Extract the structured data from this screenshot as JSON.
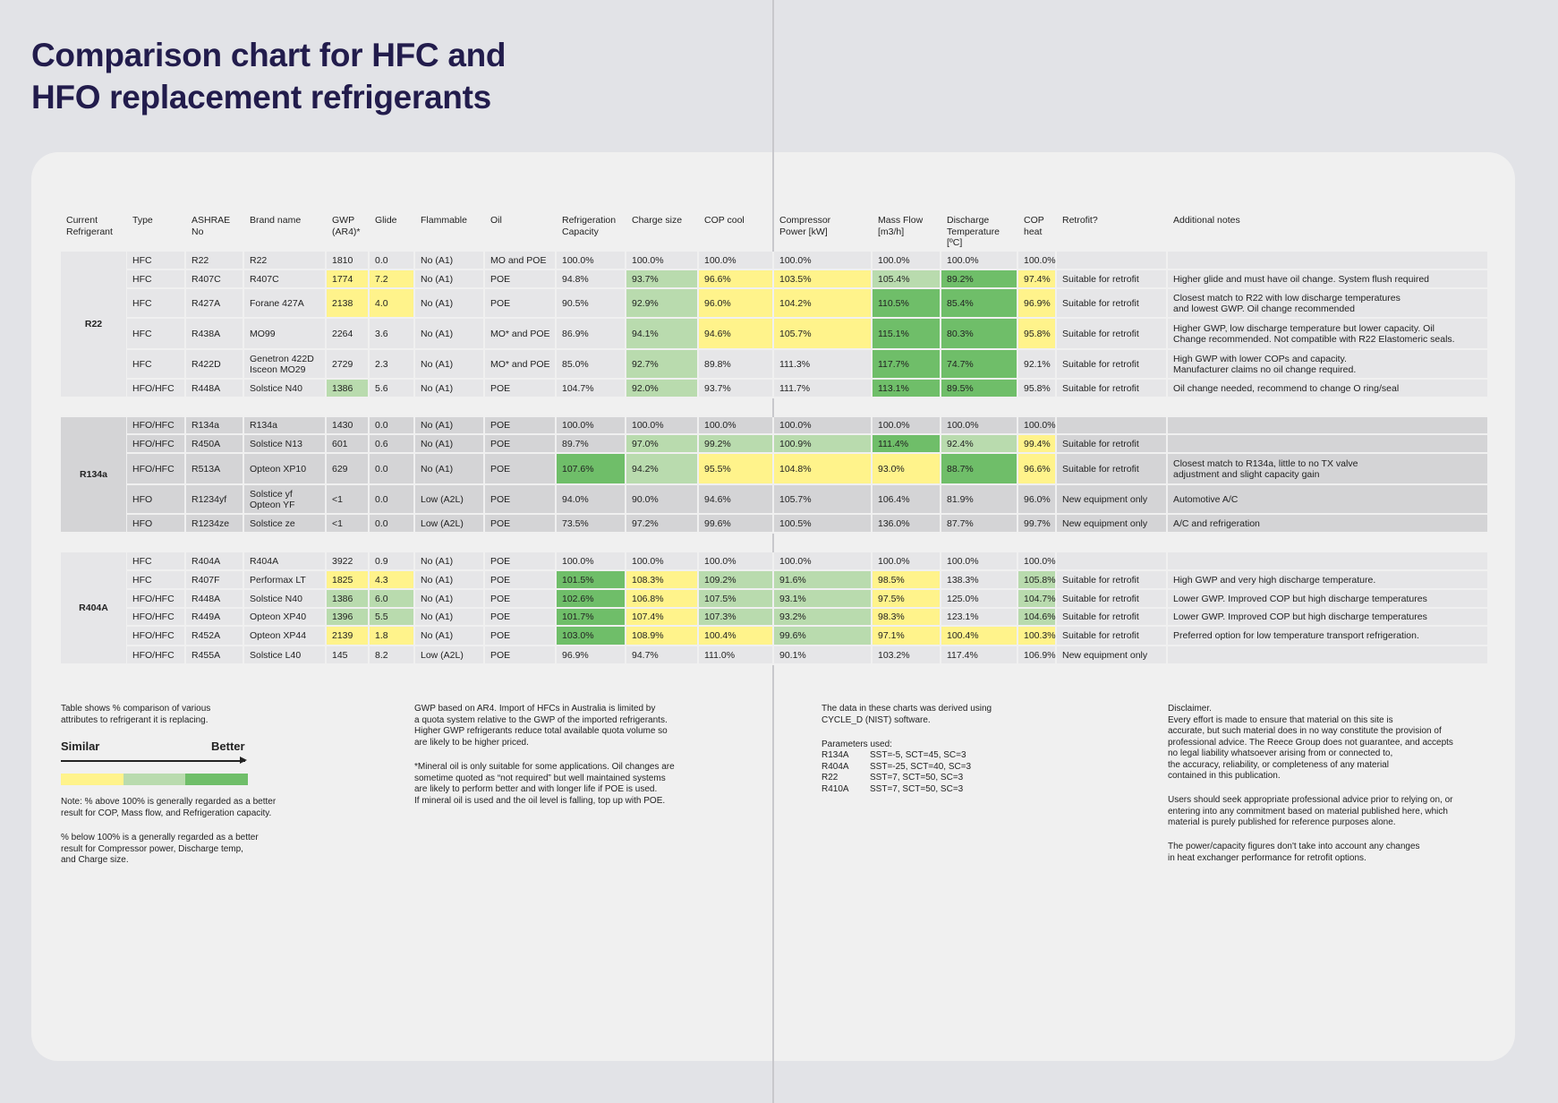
{
  "title": "Comparison chart for HFC and\nHFO replacement refrigerants",
  "colors": {
    "Y": "#fff38b",
    "L": "#b9dbae",
    "G": "#6fbe69",
    "bg_light": "#e6e6e8",
    "bg_dark": "#d4d4d6"
  },
  "headers": [
    "Current\nRefrigerant",
    "Type",
    "ASHRAE\nNo",
    "Brand name",
    "GWP\n(AR4)*",
    "Glide",
    "Flammable",
    "Oil",
    "Refrigeration\nCapacity",
    "Charge size",
    "COP cool",
    "Compressor\nPower [kW]",
    "Mass Flow\n[m3/h]",
    "Discharge\nTemperature\n[ºC]",
    "COP\nheat",
    "Retrofit?",
    "Additional notes"
  ],
  "groups": [
    {
      "label": "R22",
      "shade": "bg_light",
      "rows": [
        {
          "cells": [
            "HFC",
            "R22",
            "R22",
            "1810",
            "0.0",
            "No (A1)",
            "MO and POE",
            "100.0%",
            "100.0%",
            "100.0%",
            "100.0%",
            "100.0%",
            "100.0%",
            "100.0%",
            "",
            ""
          ],
          "hl": "................"
        },
        {
          "cells": [
            "HFC",
            "R407C",
            "R407C",
            "1774",
            "7.2",
            "No (A1)",
            "POE",
            "94.8%",
            "93.7%",
            "96.6%",
            "103.5%",
            "105.4%",
            "89.2%",
            "97.4%",
            "Suitable for retrofit",
            "Higher glide and must have oil change. System flush required"
          ],
          "hl": "...YY...LYYLGY.."
        },
        {
          "cells": [
            "HFC",
            "R427A",
            "Forane 427A",
            "2138",
            "4.0",
            "No (A1)",
            "POE",
            "90.5%",
            "92.9%",
            "96.0%",
            "104.2%",
            "110.5%",
            "85.4%",
            "96.9%",
            "Suitable for retrofit",
            "Closest match to R22 with low discharge temperatures\nand lowest GWP. Oil change recommended"
          ],
          "hl": "...YY...LYYGGY.."
        },
        {
          "cells": [
            "HFC",
            "R438A",
            "MO99",
            "2264",
            "3.6",
            "No (A1)",
            "MO* and POE",
            "86.9%",
            "94.1%",
            "94.6%",
            "105.7%",
            "115.1%",
            "80.3%",
            "95.8%",
            "Suitable for retrofit",
            "Higher GWP, low discharge temperature but lower capacity. Oil\nChange recommended. Not compatible with R22 Elastomeric seals."
          ],
          "hl": "........LYYGGY.."
        },
        {
          "cells": [
            "HFC",
            "R422D",
            "Genetron 422D\nIsceon MO29",
            "2729",
            "2.3",
            "No (A1)",
            "MO* and POE",
            "85.0%",
            "92.7%",
            "89.8%",
            "111.3%",
            "117.7%",
            "74.7%",
            "92.1%",
            "Suitable for retrofit",
            "High GWP with lower COPs and capacity.\nManufacturer claims no oil change required."
          ],
          "hl": "........L..GG..."
        },
        {
          "cells": [
            "HFO/HFC",
            "R448A",
            "Solstice N40",
            "1386",
            "5.6",
            "No (A1)",
            "POE",
            "104.7%",
            "92.0%",
            "93.7%",
            "111.7%",
            "113.1%",
            "89.5%",
            "95.8%",
            "Suitable for retrofit",
            "Oil change needed, recommend to change O ring/seal"
          ],
          "hl": "...L....L..GG..."
        }
      ]
    },
    {
      "label": "R134a",
      "shade": "bg_dark",
      "rows": [
        {
          "cells": [
            "HFO/HFC",
            "R134a",
            "R134a",
            "1430",
            "0.0",
            "No (A1)",
            "POE",
            "100.0%",
            "100.0%",
            "100.0%",
            "100.0%",
            "100.0%",
            "100.0%",
            "100.0%",
            "",
            ""
          ],
          "hl": "................"
        },
        {
          "cells": [
            "HFO/HFC",
            "R450A",
            "Solstice N13",
            "601",
            "0.6",
            "No (A1)",
            "POE",
            "89.7%",
            "97.0%",
            "99.2%",
            "100.9%",
            "111.4%",
            "92.4%",
            "99.4%",
            "Suitable for retrofit",
            ""
          ],
          "hl": "........LLLGLY.."
        },
        {
          "cells": [
            "HFO/HFC",
            "R513A",
            "Opteon XP10",
            "629",
            "0.0",
            "No (A1)",
            "POE",
            "107.6%",
            "94.2%",
            "95.5%",
            "104.8%",
            "93.0%",
            "88.7%",
            "96.6%",
            "Suitable for retrofit",
            "Closest match to R134a, little to no TX valve\nadjustment and slight capacity gain"
          ],
          "hl": ".......GLYYYGY.."
        },
        {
          "cells": [
            "HFO",
            "R1234yf",
            "Solstice yf\nOpteon YF",
            "<1",
            "0.0",
            "Low (A2L)",
            "POE",
            "94.0%",
            "90.0%",
            "94.6%",
            "105.7%",
            "106.4%",
            "81.9%",
            "96.0%",
            "New equipment only",
            "Automotive A/C"
          ],
          "hl": "................"
        },
        {
          "cells": [
            "HFO",
            "R1234ze",
            "Solstice ze",
            "<1",
            "0.0",
            "Low (A2L)",
            "POE",
            "73.5%",
            "97.2%",
            "99.6%",
            "100.5%",
            "136.0%",
            "87.7%",
            "99.7%",
            "New equipment only",
            "A/C and refrigeration"
          ],
          "hl": "................"
        }
      ]
    },
    {
      "label": "R404A",
      "shade": "bg_light",
      "rows": [
        {
          "cells": [
            "HFC",
            "R404A",
            "R404A",
            "3922",
            "0.9",
            "No (A1)",
            "POE",
            "100.0%",
            "100.0%",
            "100.0%",
            "100.0%",
            "100.0%",
            "100.0%",
            "100.0%",
            "",
            ""
          ],
          "hl": "................"
        },
        {
          "cells": [
            "HFC",
            "R407F",
            "Performax LT",
            "1825",
            "4.3",
            "No (A1)",
            "POE",
            "101.5%",
            "108.3%",
            "109.2%",
            "91.6%",
            "98.5%",
            "138.3%",
            "105.8%",
            "Suitable for retrofit",
            "High GWP and very high discharge temperature."
          ],
          "hl": "...YY..GYLLY.L.."
        },
        {
          "cells": [
            "HFO/HFC",
            "R448A",
            "Solstice N40",
            "1386",
            "6.0",
            "No (A1)",
            "POE",
            "102.6%",
            "106.8%",
            "107.5%",
            "93.1%",
            "97.5%",
            "125.0%",
            "104.7%",
            "Suitable for retrofit",
            "Lower GWP. Improved COP but high discharge temperatures"
          ],
          "hl": "...LL..GYLLY.L.."
        },
        {
          "cells": [
            "HFO/HFC",
            "R449A",
            "Opteon XP40",
            "1396",
            "5.5",
            "No (A1)",
            "POE",
            "101.7%",
            "107.4%",
            "107.3%",
            "93.2%",
            "98.3%",
            "123.1%",
            "104.6%",
            "Suitable for retrofit",
            "Lower GWP. Improved COP but high discharge temperatures"
          ],
          "hl": "...LL..GYLLY.L.."
        },
        {
          "cells": [
            "HFO/HFC",
            "R452A",
            "Opteon XP44",
            "2139",
            "1.8",
            "No (A1)",
            "POE",
            "103.0%",
            "108.9%",
            "100.4%",
            "99.6%",
            "97.1%",
            "100.4%",
            "100.3%",
            "Suitable for retrofit",
            "Preferred option for low temperature transport refrigeration."
          ],
          "hl": "...YY..GYYLYYY.."
        },
        {
          "cells": [
            "HFO/HFC",
            "R455A",
            "Solstice L40",
            "145",
            "8.2",
            "Low (A2L)",
            "POE",
            "96.9%",
            "94.7%",
            "111.0%",
            "90.1%",
            "103.2%",
            "117.4%",
            "106.9%",
            "New equipment only",
            ""
          ],
          "hl": "................"
        }
      ]
    }
  ],
  "footer": {
    "intro": "Table shows % comparison of various\nattributes to refrigerant it is replacing.",
    "scale_left": "Similar",
    "scale_right": "Better",
    "note1": "Note: % above 100% is generally regarded as a better\nresult for COP, Mass flow, and Refrigeration capacity.",
    "note2": "% below 100% is a generally regarded as a better\nresult for Compressor power, Discharge temp,\nand Charge size.",
    "gwp": "GWP based on AR4. Import of HFCs in Australia is limited by\na quota system relative to the GWP of the imported refrigerants.\nHigher GWP refrigerants reduce total available quota volume so\nare likely to be higher priced.",
    "mineral": "*Mineral oil is only suitable for some applications. Oil changes are\nsometime quoted as “not required” but well maintained systems\nare likely to perform better and with longer life if POE is used.\nIf mineral oil is used and the oil level is falling, top up with POE.",
    "source": "The data in these charts was derived using\nCYCLE_D (NIST) software.",
    "params_title": "Parameters used:",
    "params": [
      [
        "R134A",
        "SST=-5, SCT=45, SC=3"
      ],
      [
        "R404A",
        "SST=-25, SCT=40, SC=3"
      ],
      [
        "R22",
        "SST=7, SCT=50, SC=3"
      ],
      [
        "R410A",
        "SST=7, SCT=50, SC=3"
      ]
    ],
    "disclaimer": "Disclaimer.\nEvery effort is made to ensure that material on this site is\naccurate, but such material does in no way constitute the provision of\nprofessional advice. The Reece Group does not guarantee, and accepts\nno legal liability whatsoever arising from or connected to,\nthe accuracy, reliability, or completeness of any material\ncontained in this publication.",
    "users": "Users should seek appropriate professional advice prior to relying on, or\nentering into any commitment based on material published here, which\nmaterial is purely published for reference purposes alone.",
    "power": "The power/capacity figures don't take into account any changes\nin heat exchanger performance for retrofit options."
  }
}
